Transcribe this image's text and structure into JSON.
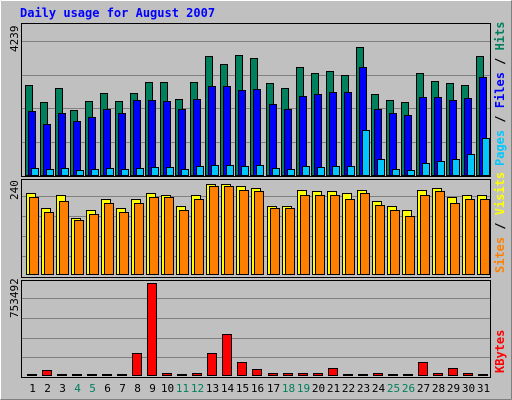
{
  "title": "Daily usage for August 2007",
  "colors": {
    "background": "#c0c0c0",
    "plot": "#c0c0c0",
    "title": "#0000ff",
    "hits": "#00805c",
    "files": "#0000ff",
    "pages": "#00c8ff",
    "visits": "#ffff00",
    "sites": "#ff8000",
    "kbytes": "#ff0000",
    "weekend_label": "#00805c",
    "weekday_label": "#000000"
  },
  "chart_data": [
    {
      "type": "bar",
      "panel": "top",
      "ymax_label": "4239",
      "ymax": 4239,
      "legend": [
        "Pages",
        "Files",
        "Hits"
      ],
      "categories": [
        "1",
        "2",
        "3",
        "4",
        "5",
        "6",
        "7",
        "8",
        "9",
        "10",
        "11",
        "12",
        "13",
        "14",
        "15",
        "16",
        "17",
        "18",
        "19",
        "20",
        "21",
        "22",
        "23",
        "24",
        "25",
        "26",
        "27",
        "28",
        "29",
        "30",
        "31"
      ],
      "weekend_days": [
        "4",
        "5",
        "11",
        "12",
        "18",
        "19",
        "25",
        "26"
      ],
      "series": [
        {
          "name": "Hits",
          "values": [
            2850,
            2300,
            2750,
            2050,
            2350,
            2600,
            2350,
            2600,
            2950,
            2950,
            2400,
            2950,
            3750,
            3500,
            3800,
            3700,
            2900,
            2750,
            3420,
            3240,
            3280,
            3170,
            4040,
            2550,
            2380,
            2300,
            3240,
            2970,
            2920,
            2850,
            3770
          ]
        },
        {
          "name": "Files",
          "values": [
            2040,
            1620,
            1950,
            1700,
            1850,
            2080,
            1950,
            2370,
            2360,
            2330,
            2080,
            2420,
            2800,
            2810,
            2700,
            2730,
            2250,
            2100,
            2510,
            2560,
            2620,
            2620,
            3420,
            2100,
            1950,
            1900,
            2470,
            2470,
            2380,
            2450,
            3110
          ]
        },
        {
          "name": "Pages",
          "values": [
            220,
            180,
            210,
            160,
            190,
            220,
            200,
            230,
            240,
            250,
            200,
            270,
            320,
            330,
            300,
            320,
            230,
            200,
            280,
            260,
            300,
            280,
            1420,
            500,
            180,
            160,
            380,
            430,
            520,
            680,
            1180
          ]
        }
      ]
    },
    {
      "type": "bar",
      "panel": "middle",
      "ymax_label": "240",
      "ymax": 240,
      "legend": [
        "Sites",
        "Visits"
      ],
      "categories": [
        "1",
        "2",
        "3",
        "4",
        "5",
        "6",
        "7",
        "8",
        "9",
        "10",
        "11",
        "12",
        "13",
        "14",
        "15",
        "16",
        "17",
        "18",
        "19",
        "20",
        "21",
        "22",
        "23",
        "24",
        "25",
        "26",
        "27",
        "28",
        "29",
        "30",
        "31"
      ],
      "series": [
        {
          "name": "Visits",
          "values": [
            215,
            175,
            210,
            150,
            170,
            200,
            175,
            200,
            215,
            210,
            180,
            210,
            240,
            240,
            235,
            230,
            180,
            180,
            225,
            220,
            220,
            215,
            225,
            195,
            180,
            170,
            225,
            230,
            205,
            210,
            210
          ]
        },
        {
          "name": "Sites",
          "values": [
            205,
            165,
            195,
            145,
            160,
            190,
            165,
            190,
            205,
            205,
            170,
            200,
            235,
            235,
            225,
            220,
            175,
            175,
            210,
            210,
            210,
            200,
            215,
            185,
            170,
            155,
            210,
            220,
            190,
            200,
            200
          ]
        }
      ]
    },
    {
      "type": "bar",
      "panel": "bottom",
      "ymax_label": "753492",
      "ymax": 753492,
      "legend": [
        "KBytes"
      ],
      "categories": [
        "1",
        "2",
        "3",
        "4",
        "5",
        "6",
        "7",
        "8",
        "9",
        "10",
        "11",
        "12",
        "13",
        "14",
        "15",
        "16",
        "17",
        "18",
        "19",
        "20",
        "21",
        "22",
        "23",
        "24",
        "25",
        "26",
        "27",
        "28",
        "29",
        "30",
        "31"
      ],
      "series": [
        {
          "name": "KBytes",
          "values": [
            12000,
            42000,
            10000,
            6000,
            6000,
            6000,
            9000,
            180000,
            750000,
            20000,
            10000,
            13000,
            180000,
            335000,
            110000,
            50000,
            15000,
            15000,
            16000,
            18000,
            55000,
            12000,
            12000,
            14000,
            8000,
            8000,
            108000,
            18000,
            55000,
            15000,
            10000
          ]
        }
      ]
    }
  ]
}
